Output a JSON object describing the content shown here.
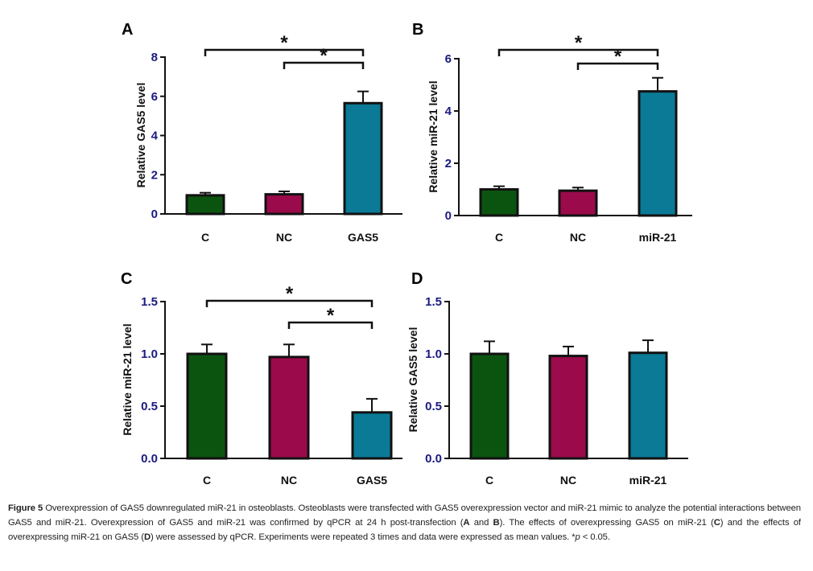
{
  "chart_data": [
    {
      "panel": "A",
      "type": "bar",
      "title": "",
      "xlabel": "",
      "ylabel": "Relative GAS5 level",
      "ylim": [
        0,
        8
      ],
      "yticks": [
        0,
        2,
        4,
        6,
        8
      ],
      "ytick_labels": [
        "0",
        "2",
        "4",
        "6",
        "8"
      ],
      "categories": [
        "C",
        "NC",
        "GAS5"
      ],
      "values": [
        0.95,
        1.0,
        5.65
      ],
      "errors": [
        0.13,
        0.15,
        0.6
      ],
      "colors": [
        "#0b5410",
        "#9b0a4a",
        "#0a7a96"
      ],
      "significance": [
        {
          "from": 0,
          "to": 2,
          "label": "*",
          "level": 1
        },
        {
          "from": 1,
          "to": 2,
          "label": "*",
          "level": 0
        }
      ],
      "grid": false
    },
    {
      "panel": "B",
      "type": "bar",
      "title": "",
      "xlabel": "",
      "ylabel": "Relative miR-21 level",
      "ylim": [
        0,
        6
      ],
      "yticks": [
        0,
        2,
        4,
        6
      ],
      "ytick_labels": [
        "0",
        "2",
        "4",
        "6"
      ],
      "categories": [
        "C",
        "NC",
        "miR-21"
      ],
      "values": [
        1.0,
        0.95,
        4.75
      ],
      "errors": [
        0.12,
        0.12,
        0.52
      ],
      "colors": [
        "#0b5410",
        "#9b0a4a",
        "#0a7a96"
      ],
      "significance": [
        {
          "from": 0,
          "to": 2,
          "label": "*",
          "level": 1
        },
        {
          "from": 1,
          "to": 2,
          "label": "*",
          "level": 0
        }
      ],
      "grid": false
    },
    {
      "panel": "C",
      "type": "bar",
      "title": "",
      "xlabel": "",
      "ylabel": "Relative miR-21 level",
      "ylim": [
        0,
        1.5
      ],
      "yticks": [
        0,
        0.5,
        1.0,
        1.5
      ],
      "ytick_labels": [
        "0.0",
        "0.5",
        "1.0",
        "1.5"
      ],
      "categories": [
        "C",
        "NC",
        "GAS5"
      ],
      "values": [
        1.0,
        0.97,
        0.44
      ],
      "errors": [
        0.09,
        0.12,
        0.13
      ],
      "colors": [
        "#0b5410",
        "#9b0a4a",
        "#0a7a96"
      ],
      "significance": [
        {
          "from": 0,
          "to": 2,
          "label": "*",
          "level": 1
        },
        {
          "from": 1,
          "to": 2,
          "label": "*",
          "level": 0
        }
      ],
      "grid": false
    },
    {
      "panel": "D",
      "type": "bar",
      "title": "",
      "xlabel": "",
      "ylabel": "Relative GAS5 level",
      "ylim": [
        0,
        1.5
      ],
      "yticks": [
        0,
        0.5,
        1.0,
        1.5
      ],
      "ytick_labels": [
        "0.0",
        "0.5",
        "1.0",
        "1.5"
      ],
      "categories": [
        "C",
        "NC",
        "miR-21"
      ],
      "values": [
        1.0,
        0.98,
        1.01
      ],
      "errors": [
        0.12,
        0.09,
        0.12
      ],
      "colors": [
        "#0b5410",
        "#9b0a4a",
        "#0a7a96"
      ],
      "significance": [],
      "grid": false
    }
  ],
  "caption": {
    "figure_label": "Figure 5",
    "part1": " Overexpression of GAS5 downregulated miR-21 in osteoblasts. Osteoblasts were transfected with GAS5 overexpression vector and miR-21 mimic to analyze the potential interactions between GAS5 and miR-21. Overexpression of GAS5 and miR-21 was confirmed by qPCR at 24 h post-transfection (",
    "ref_A": "A",
    "and1": " and ",
    "ref_B": "B",
    "part2": "). The effects of overexpressing GAS5 on miR-21 (",
    "ref_C": "C",
    "part3": ") and the effects of overexpressing miR-21 on GAS5 (",
    "ref_D": "D",
    "part4": ") were assessed by qPCR. Experiments were repeated 3 times and data were expressed as mean values. *",
    "p_symbol": "p",
    "part5": " < 0.05."
  }
}
